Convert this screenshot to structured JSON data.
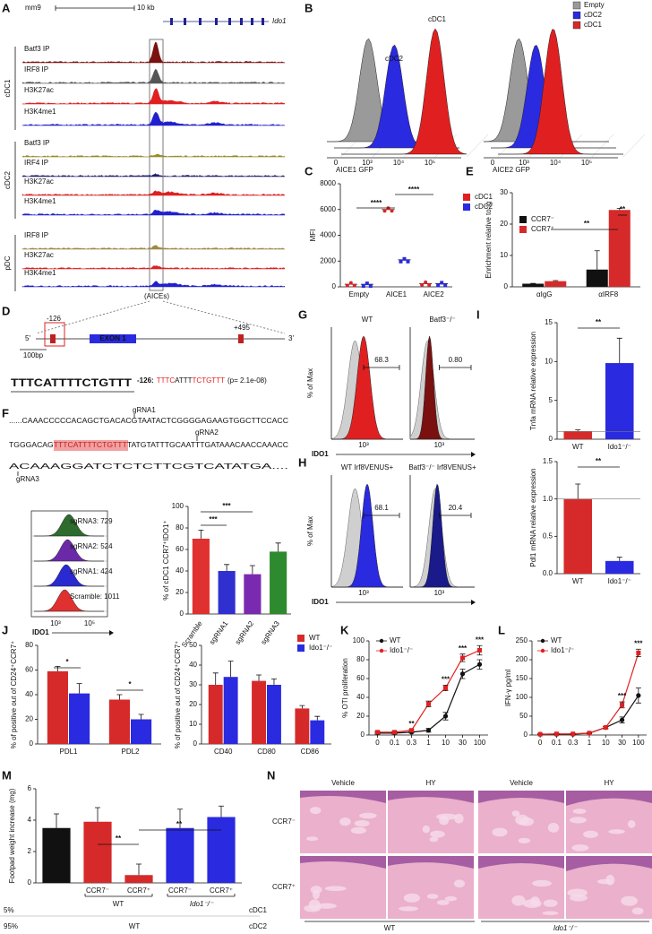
{
  "panels": [
    "A",
    "B",
    "C",
    "D",
    "E",
    "F",
    "G",
    "H",
    "I",
    "J",
    "K",
    "L",
    "M",
    "N"
  ],
  "track": {
    "assembly": "mm9",
    "scale": "10 kb",
    "gene": "Ido1",
    "groups": [
      {
        "name": "cDC1",
        "tracks": [
          "Batf3 IP",
          "IRF8 IP",
          "H3K27ac",
          "H3K4me1"
        ]
      },
      {
        "name": "cDC2",
        "tracks": [
          "Batf3 IP",
          "IRF4 IP",
          "H3K27ac",
          "H3K4me1"
        ]
      },
      {
        "name": "pDC",
        "tracks": [
          "IRF8 IP",
          "H3K27ac",
          "H3K4me1"
        ]
      }
    ],
    "region": "(AICEs)"
  },
  "reporter": {
    "legend": [
      "Empty",
      "cDC2",
      "cDC1"
    ],
    "curve_labels": [
      "cDC1",
      "cDC2"
    ],
    "axes": [
      "AICE1 GFP",
      "AICE2 GFP"
    ],
    "ticks": [
      "0",
      "10³",
      "10⁴",
      "10⁵"
    ]
  },
  "promoter": {
    "sites": [
      "-126",
      "+495"
    ],
    "ends": [
      "5'",
      "3'"
    ],
    "exon": "EXON 1",
    "scale": "100bp",
    "motif_logo": "TTTCATTTTCTGTTT",
    "motif": "-126:",
    "motif_seq": [
      "TTTC",
      "ATTT",
      "TCTGTTT"
    ],
    "pvalue": "(p= 2.1e-08)"
  },
  "sequence": {
    "lines": [
      [
        "......CAAACCCCCACAGCTGACACGTAATACTCGGGGAGAAGTGGCTTCCACC"
      ],
      [
        "TGGGACAG",
        "TTTCATTTTCTGTTT",
        "TATGTATTTGCAATTTGATAAACAACCAAACC"
      ],
      [
        "ACAAAGGATCTCTCTTCGTCATATGA...."
      ]
    ],
    "guides": [
      "gRNA1",
      "gRNA2",
      "gRNA3"
    ]
  },
  "flow_f": {
    "samples": [
      "sgRNA3: 729",
      "sgRNA2: 524",
      "sgRNA1: 424",
      "Scramble: 1011"
    ],
    "axis": "IDO1",
    "ticks": [
      "10³",
      "10⁵"
    ]
  },
  "flow_g": {
    "ylabel": "% of Max",
    "xlabel": "IDO1",
    "titles": [
      "WT",
      "Batf3⁻/⁻"
    ],
    "gates": [
      "68.3",
      "0.80"
    ],
    "ticks": [
      "10³"
    ]
  },
  "flow_h": {
    "ylabel": "% of Max",
    "xlabel": "IDO1",
    "titles": [
      "WT Irf8VENUS+",
      "Batf3⁻/⁻ Irf8VENUS+"
    ],
    "gates": [
      "68.1",
      "20.4"
    ],
    "ticks": [
      "10³"
    ]
  },
  "histology": {
    "columns": [
      "Vehicle",
      "HY",
      "Vehicle",
      "HY"
    ],
    "rows": [
      "CCR7⁻",
      "CCR7⁺"
    ],
    "groups": [
      "WT",
      "Ido1⁻/⁻"
    ]
  },
  "chart_data": [
    {
      "type": "bar",
      "ylabel": "% of cDC1 CCR7⁺IDO1⁺",
      "categories": [
        "Scramble",
        "sgRNA1",
        "sgRNA2",
        "sgRNA3"
      ],
      "values": [
        70,
        40,
        37,
        58
      ],
      "errors": [
        8,
        6,
        8,
        8
      ],
      "colors": [
        "#e03030",
        "#3030d0",
        "#7a2ab0",
        "#2e8a2e"
      ],
      "ylim": [
        0,
        100
      ],
      "yticks": [
        0,
        20,
        40,
        60,
        80,
        100
      ],
      "annotations": [
        "***",
        "***"
      ]
    },
    {
      "type": "dot",
      "ylabel": "MFI",
      "categories": [
        "Empty",
        "AICE1",
        "AICE2"
      ],
      "series": [
        {
          "name": "cDC1",
          "color": "#e02020",
          "values": [
            200,
            6000,
            250
          ]
        },
        {
          "name": "cDC2",
          "color": "#2a2ae0",
          "values": [
            200,
            2100,
            250
          ]
        }
      ],
      "ylim": [
        0,
        8000
      ],
      "yticks": [
        0,
        2000,
        4000,
        6000,
        8000
      ],
      "annotations": [
        "****",
        "****"
      ]
    },
    {
      "type": "bar",
      "ylabel": "Enrichment relative to Ig",
      "categories": [
        "αIgG",
        "αIRF8"
      ],
      "series": [
        {
          "name": "CCR7⁻",
          "color": "#111111",
          "values": [
            1,
            5.5
          ],
          "errors": [
            0.1,
            6
          ]
        },
        {
          "name": "CCR7⁺",
          "color": "#d62a2a",
          "values": [
            1.8,
            24.5
          ],
          "errors": [
            0.2,
            0.5
          ]
        }
      ],
      "ylim": [
        0,
        30
      ],
      "yticks": [
        0,
        10,
        20,
        30
      ],
      "annotations": [
        "**",
        "**"
      ]
    },
    {
      "type": "bar",
      "ylabel": "Tnfa mRNA relative expression",
      "categories": [
        "WT",
        "Ido1⁻/⁻"
      ],
      "values": [
        1,
        9.8
      ],
      "errors": [
        0.2,
        3.2
      ],
      "colors": [
        "#d62a2a",
        "#2a2ae0"
      ],
      "refline": 1,
      "ylim": [
        0,
        15
      ],
      "yticks": [
        0,
        5,
        10,
        15
      ],
      "annotations": [
        "**"
      ]
    },
    {
      "type": "bar",
      "ylabel": "Pdl1 mRNA relative expression",
      "categories": [
        "WT",
        "Ido1⁻/⁻"
      ],
      "values": [
        1,
        0.17
      ],
      "errors": [
        0.2,
        0.05
      ],
      "colors": [
        "#d62a2a",
        "#2a2ae0"
      ],
      "refline": 1,
      "ylim": [
        0,
        1.5
      ],
      "yticks": [
        {
          "value": 0,
          "label": "0.0"
        },
        0.5,
        {
          "value": 1,
          "label": "1.0"
        },
        1.5
      ],
      "annotations": [
        "**"
      ]
    },
    {
      "type": "bar",
      "ylabel": "% of positive out of CD24⁺CCR7⁺",
      "categories": [
        "PDL1",
        "PDL2"
      ],
      "series": [
        {
          "name": "WT",
          "color": "#d62a2a",
          "values": [
            59,
            36
          ],
          "errors": [
            4,
            4
          ]
        },
        {
          "name": "Ido1⁻/⁻",
          "color": "#2a2ae0",
          "values": [
            41,
            20
          ],
          "errors": [
            8,
            4
          ]
        }
      ],
      "ylim": [
        0,
        80
      ],
      "yticks": [
        0,
        20,
        40,
        60,
        80
      ],
      "annotations": [
        "*",
        "*"
      ]
    },
    {
      "type": "bar",
      "ylabel": "% of positive out of CD24⁺CCR7⁺",
      "categories": [
        "CD40",
        "CD80",
        "CD86"
      ],
      "series": [
        {
          "name": "WT",
          "color": "#d62a2a",
          "values": [
            30,
            32,
            18
          ],
          "errors": [
            6,
            3,
            1.5
          ]
        },
        {
          "name": "Ido1⁻/⁻",
          "color": "#2a2ae0",
          "values": [
            34,
            30,
            12
          ],
          "errors": [
            8,
            3,
            2
          ]
        }
      ],
      "ylim": [
        0,
        50
      ],
      "yticks": [
        0,
        10,
        20,
        30,
        40,
        50
      ]
    },
    {
      "type": "line",
      "ylabel": "% OTI proliferation",
      "categories": [
        "0",
        "0.1",
        "0.3",
        "1",
        "10",
        "30",
        "100"
      ],
      "series": [
        {
          "name": "WT",
          "color": "#111111",
          "values": [
            2,
            2,
            3,
            5,
            20,
            65,
            75
          ],
          "errors": [
            1,
            1,
            1,
            2,
            4,
            5,
            5
          ]
        },
        {
          "name": "Ido1⁻/⁻",
          "color": "#e02020",
          "values": [
            3,
            3,
            5,
            33,
            50,
            82,
            90
          ],
          "errors": [
            1,
            1,
            1,
            3,
            3,
            4,
            5
          ]
        }
      ],
      "ylim": [
        0,
        100
      ],
      "yticks": [
        0,
        20,
        40,
        60,
        80,
        100
      ],
      "annotations": [
        "**",
        "***",
        "***",
        "***"
      ]
    },
    {
      "type": "line",
      "ylabel": "IFN-γ pg/ml",
      "categories": [
        "0",
        "0.1",
        "0.3",
        "1",
        "10",
        "30",
        "100"
      ],
      "series": [
        {
          "name": "WT",
          "color": "#111111",
          "values": [
            2,
            2,
            2,
            5,
            20,
            40,
            105
          ],
          "errors": [
            1,
            1,
            1,
            1,
            3,
            8,
            20
          ]
        },
        {
          "name": "Ido1⁻/⁻",
          "color": "#e02020",
          "values": [
            2,
            3,
            3,
            5,
            20,
            80,
            218
          ],
          "errors": [
            1,
            1,
            1,
            1,
            3,
            8,
            10
          ]
        }
      ],
      "ylim": [
        0,
        250
      ],
      "yticks": [
        0,
        50,
        100,
        150,
        200,
        250
      ],
      "annotations": [
        "***",
        "***"
      ]
    },
    {
      "type": "bar",
      "ylabel": "Footpad weight increase (mg)",
      "categories": [
        null,
        "CCR7⁻",
        "CCR7⁺",
        "CCR7⁻",
        "CCR7⁺"
      ],
      "values": [
        3.5,
        3.9,
        0.5,
        3.5,
        4.2
      ],
      "errors": [
        0.9,
        0.9,
        0.7,
        1.2,
        0.7
      ],
      "colors": [
        "#111111",
        "#d62a2a",
        "#d62a2a",
        "#2a2ae0",
        "#2a2ae0"
      ],
      "ylim": [
        0,
        6
      ],
      "yticks": [
        0,
        2,
        4,
        6
      ],
      "annotations": [
        "**",
        "**"
      ],
      "group_labels": [
        "WT",
        "Ido1⁻/⁻"
      ],
      "rows": [
        [
          "5%",
          "cDC1"
        ],
        [
          "95%",
          "WT",
          "cDC2"
        ]
      ]
    }
  ]
}
